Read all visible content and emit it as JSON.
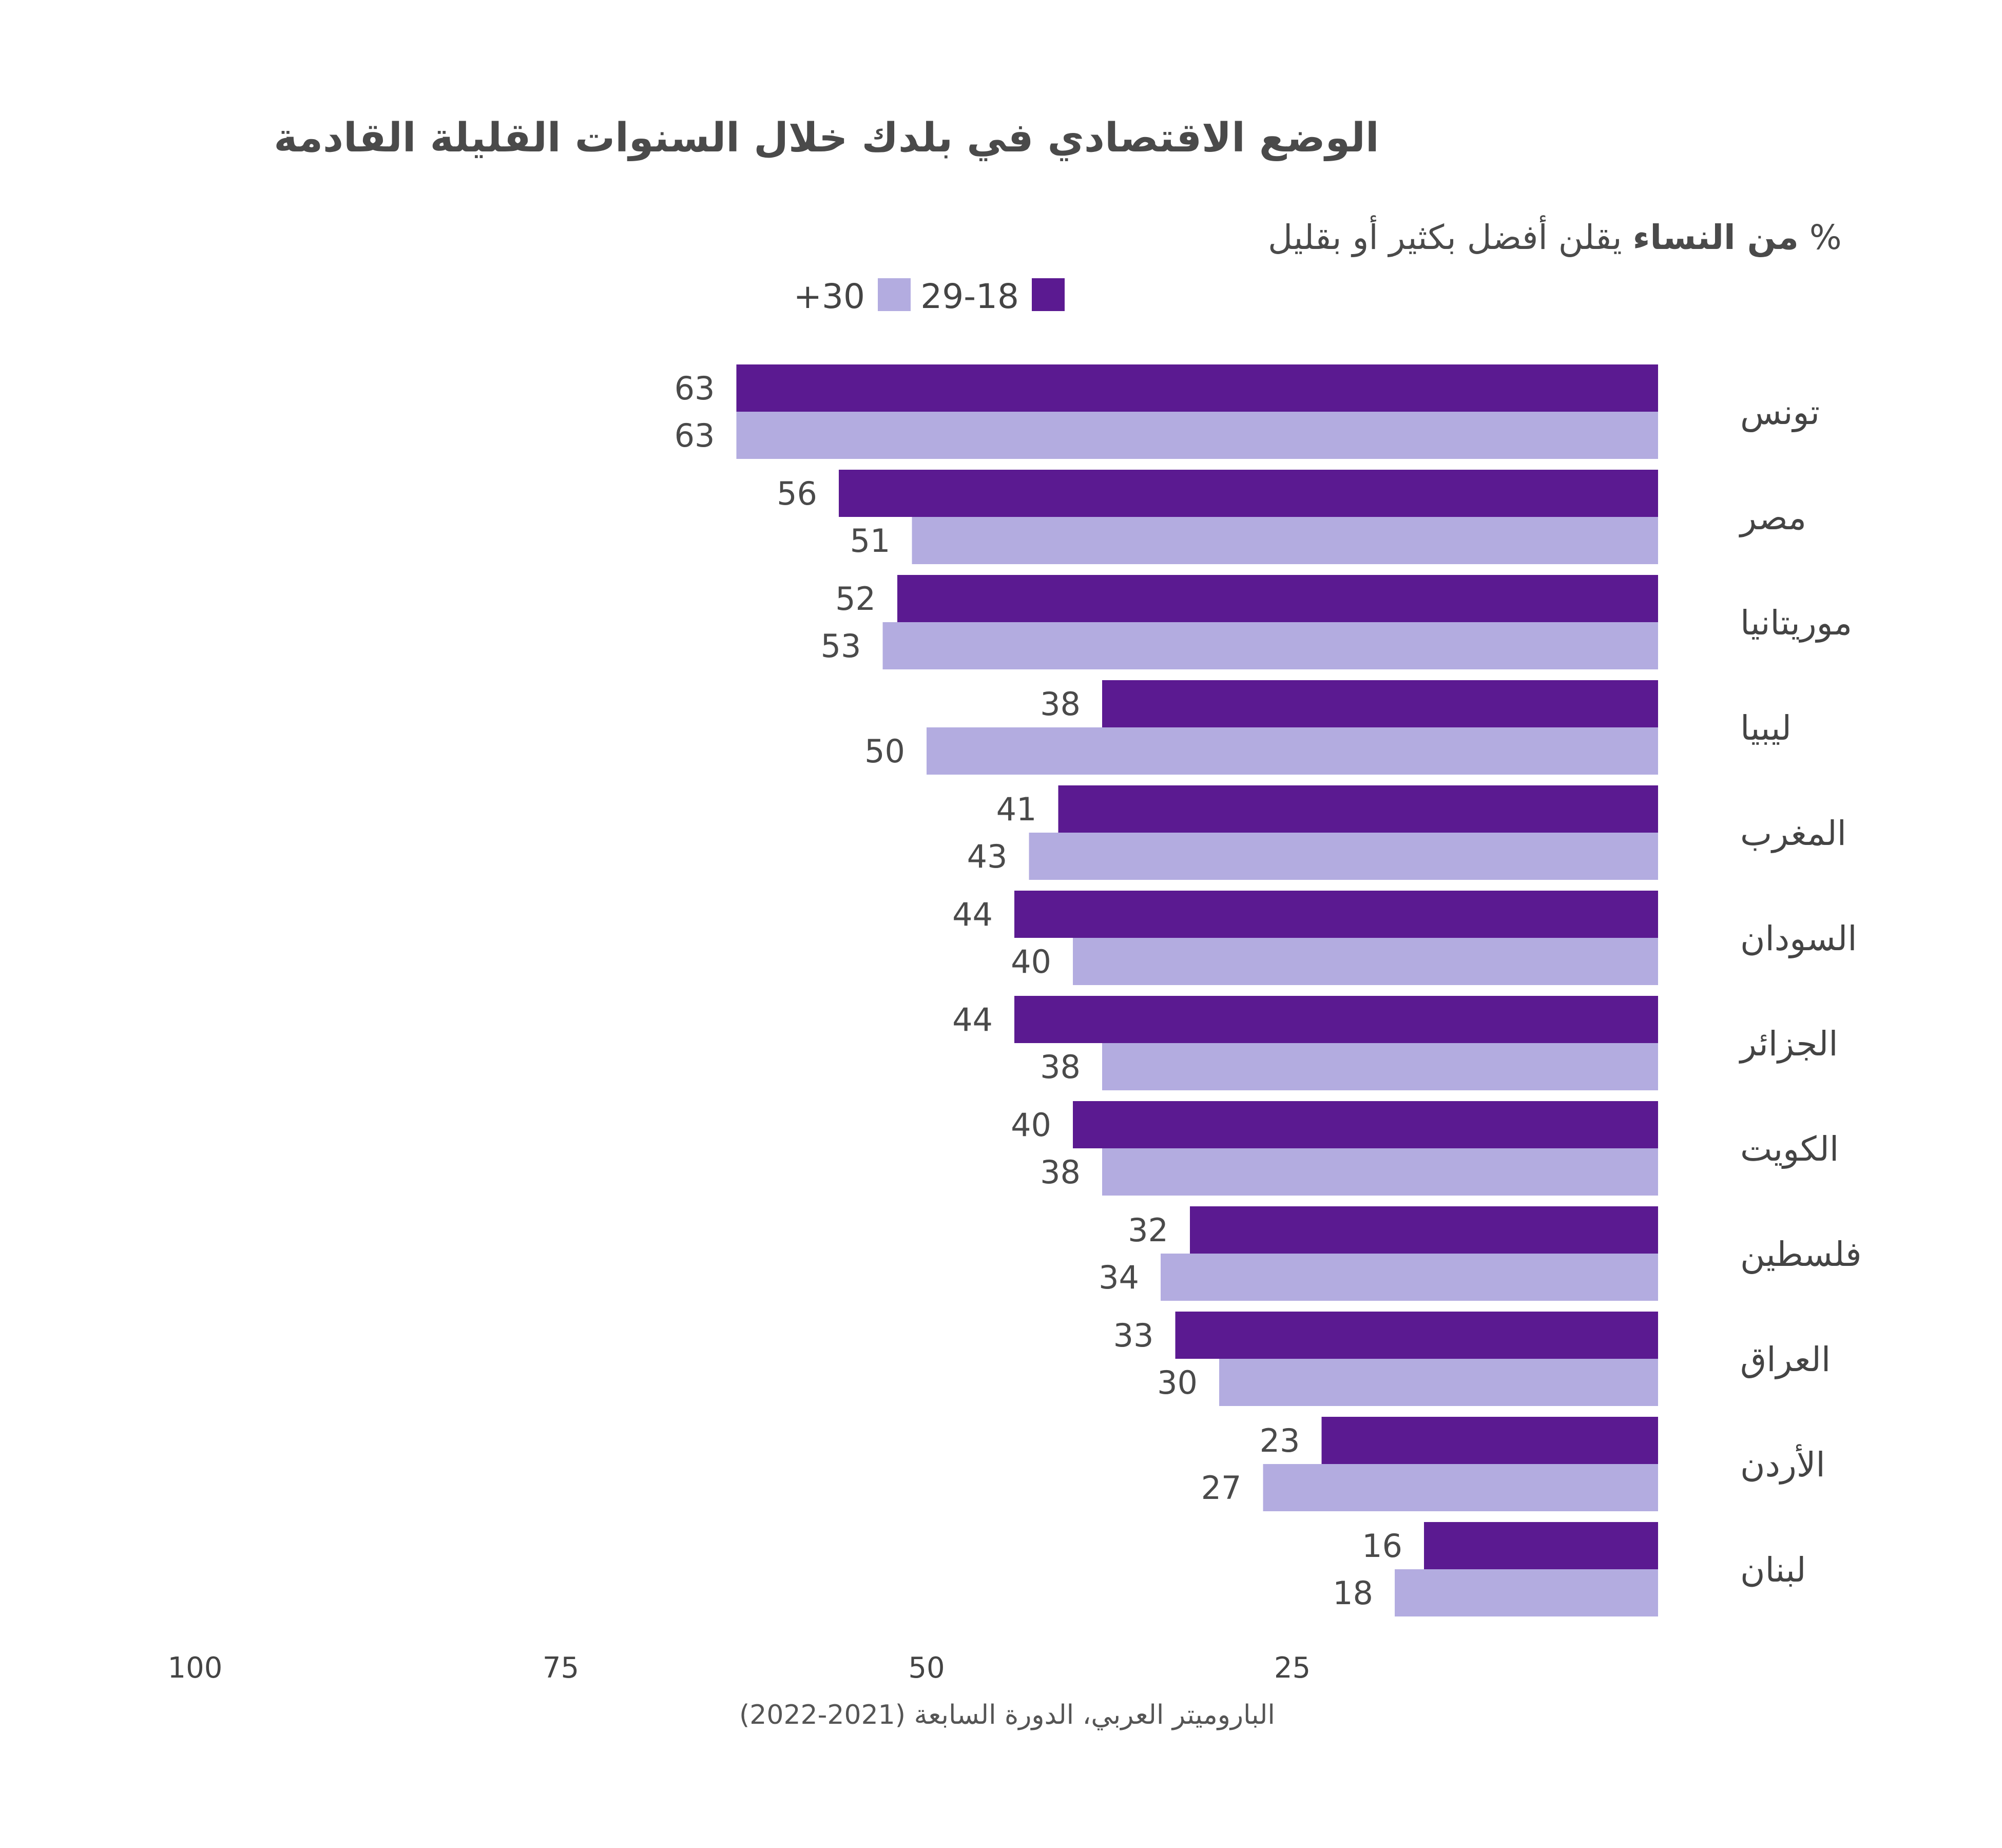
{
  "colors": {
    "dark": "#5B1A91",
    "light": "#B3ACE0"
  },
  "chart_data": {
    "type": "bar",
    "orientation": "horizontal",
    "direction": "rtl",
    "title": "الوضع الاقتصادي في بلدك خلال السنوات القليلة القادمة",
    "subtitle_prefix": "%",
    "subtitle_bold": "من النساء",
    "subtitle_rest": "يقلن أفضل بكثير أو بقليل",
    "categories": [
      "تونس",
      "مصر",
      "موريتانيا",
      "ليبيا",
      "المغرب",
      "السودان",
      "الجزائر",
      "الكويت",
      "فلسطين",
      "العراق",
      "الأردن",
      "لبنان"
    ],
    "series": [
      {
        "name": "29-18",
        "color": "#5B1A91",
        "values": [
          63,
          56,
          52,
          38,
          41,
          44,
          44,
          40,
          32,
          33,
          23,
          16
        ]
      },
      {
        "name": "+30",
        "color": "#B3ACE0",
        "values": [
          63,
          51,
          53,
          50,
          43,
          40,
          38,
          38,
          34,
          30,
          27,
          18
        ]
      }
    ],
    "xlim": [
      0,
      100
    ],
    "xticks": [
      100,
      75,
      50,
      25
    ],
    "tick_labels": [
      "100",
      "75",
      "50",
      "25"
    ],
    "legend_position": "top-center",
    "grid": false,
    "source": "الباروميتر العربي، الدورة السابعة (2021-2022)"
  }
}
